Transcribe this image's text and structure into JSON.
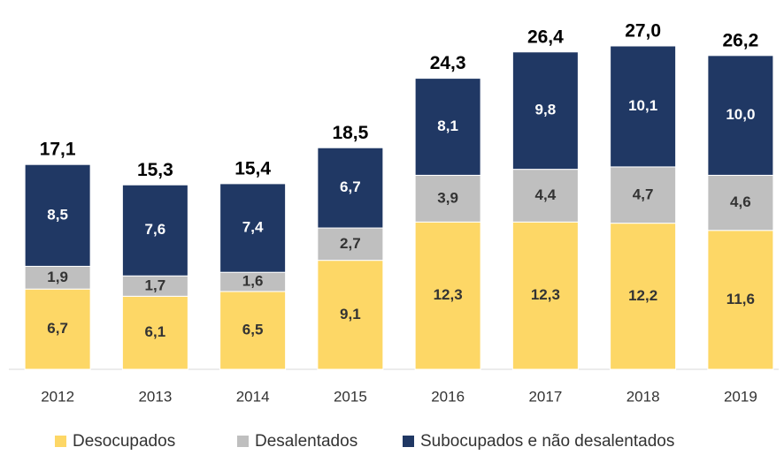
{
  "chart_data": {
    "type": "stacked-bar",
    "categories": [
      "2012",
      "2013",
      "2014",
      "2015",
      "2016",
      "2017",
      "2018",
      "2019"
    ],
    "series": [
      {
        "name": "Desocupados",
        "color": "#fdd766",
        "label_color": "#333333",
        "values": [
          6.7,
          6.1,
          6.5,
          9.1,
          12.3,
          12.3,
          12.2,
          11.6
        ],
        "value_labels": [
          "6,7",
          "6,1",
          "6,5",
          "9,1",
          "12,3",
          "12,3",
          "12,2",
          "11,6"
        ]
      },
      {
        "name": "Desalentados",
        "color": "#bfbfbf",
        "label_color": "#333333",
        "values": [
          1.9,
          1.7,
          1.6,
          2.7,
          3.9,
          4.4,
          4.7,
          4.6
        ],
        "value_labels": [
          "1,9",
          "1,7",
          "1,6",
          "2,7",
          "3,9",
          "4,4",
          "4,7",
          "4,6"
        ]
      },
      {
        "name": "Subocupados e não desalentados",
        "color": "#203864",
        "label_color": "#ffffff",
        "values": [
          8.5,
          7.6,
          7.4,
          6.7,
          8.1,
          9.8,
          10.1,
          10.0
        ],
        "value_labels": [
          "8,5",
          "7,6",
          "7,4",
          "6,7",
          "8,1",
          "9,8",
          "10,1",
          "10,0"
        ]
      }
    ],
    "totals": [
      17.1,
      15.3,
      15.4,
      18.5,
      24.3,
      26.4,
      27.0,
      26.2
    ],
    "total_labels": [
      "17,1",
      "15,3",
      "15,4",
      "18,5",
      "24,3",
      "26,4",
      "27,0",
      "26,2"
    ]
  }
}
